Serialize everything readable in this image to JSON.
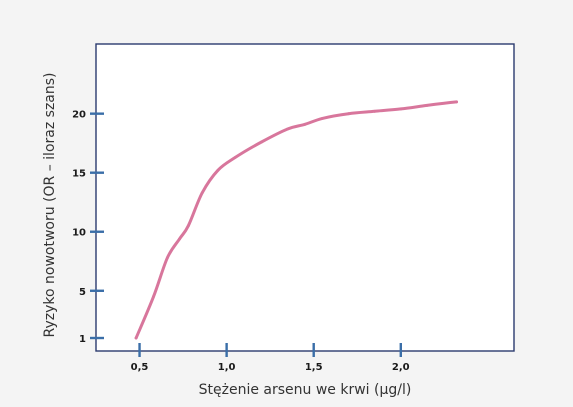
{
  "colors": {
    "background": "#f4f4f4",
    "plot_background": "#ffffff",
    "axis": "#2b3a6e",
    "tick": "#3a6ea8",
    "line": "#d8769c"
  },
  "chart_data": {
    "type": "line",
    "title": "",
    "xlabel": "Stężenie arsenu we krwi (µg/l)",
    "ylabel": "Ryzyko nowotworu (OR – iloraz szans)",
    "xlim": [
      0.25,
      2.65
    ],
    "ylim": [
      -0.1,
      25.9
    ],
    "x_ticks": [
      0.5,
      1.0,
      1.5,
      2.0
    ],
    "x_tick_labels": [
      "0,5",
      "1,0",
      "1,5",
      "2,0"
    ],
    "y_ticks": [
      1,
      5,
      10,
      15,
      20
    ],
    "y_tick_labels": [
      "1",
      "5",
      "10",
      "15",
      "20"
    ],
    "grid": false,
    "series": [
      {
        "x": [
          0.48,
          0.58,
          0.66,
          0.73,
          0.78,
          0.86,
          0.95,
          1.05,
          1.2,
          1.35,
          1.45,
          1.55,
          1.7,
          1.85,
          2.0,
          2.15,
          2.32
        ],
        "values": [
          1.0,
          4.5,
          7.8,
          9.4,
          10.5,
          13.3,
          15.2,
          16.3,
          17.6,
          18.7,
          19.1,
          19.6,
          20.0,
          20.2,
          20.4,
          20.7,
          21.0
        ]
      }
    ]
  }
}
